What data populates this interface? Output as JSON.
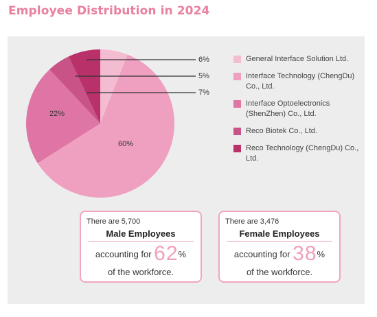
{
  "title": "Employee Distribution in 2024",
  "chart_data": {
    "type": "pie",
    "slices": [
      {
        "name": "General Interface Solution Ltd.",
        "value": 6,
        "label": "6%",
        "color": "#f4bcd1"
      },
      {
        "name": "Interface Technology (ChengDu) Co., Ltd.",
        "value": 60,
        "label": "60%",
        "color": "#ef9fbf"
      },
      {
        "name": "Interface Optoelectronics (ShenZhen) Co., Ltd.",
        "value": 22,
        "label": "22%",
        "color": "#de75a5"
      },
      {
        "name": "Reco Biotek  Co., Ltd.",
        "value": 5,
        "label": "5%",
        "color": "#c95286"
      },
      {
        "name": "Reco Technology (ChengDu) Co., Ltd.",
        "value": 7,
        "label": "7%",
        "color": "#b93169"
      }
    ]
  },
  "legend": [
    {
      "label": "General Interface Solution Ltd.",
      "color": "#f4bcd1"
    },
    {
      "label": "Interface Technology (ChengDu) Co., Ltd.",
      "color": "#ef9fbf"
    },
    {
      "label": "Interface Optoelectronics (ShenZhen) Co., Ltd.",
      "color": "#de75a5"
    },
    {
      "label": "Reco Biotek  Co., Ltd.",
      "color": "#c95286"
    },
    {
      "label": "Reco Technology (ChengDu) Co., Ltd.",
      "color": "#b93169"
    }
  ],
  "cards": {
    "male": {
      "count_text": "There are 5,700",
      "heading": "Male Employees",
      "prefix": "accounting for",
      "percent": "62",
      "suffix": "%",
      "tail": "of the workforce."
    },
    "female": {
      "count_text": "There are 3,476",
      "heading": "Female Employees",
      "prefix": "accounting for",
      "percent": "38",
      "suffix": "%",
      "tail": "of the workforce."
    }
  }
}
